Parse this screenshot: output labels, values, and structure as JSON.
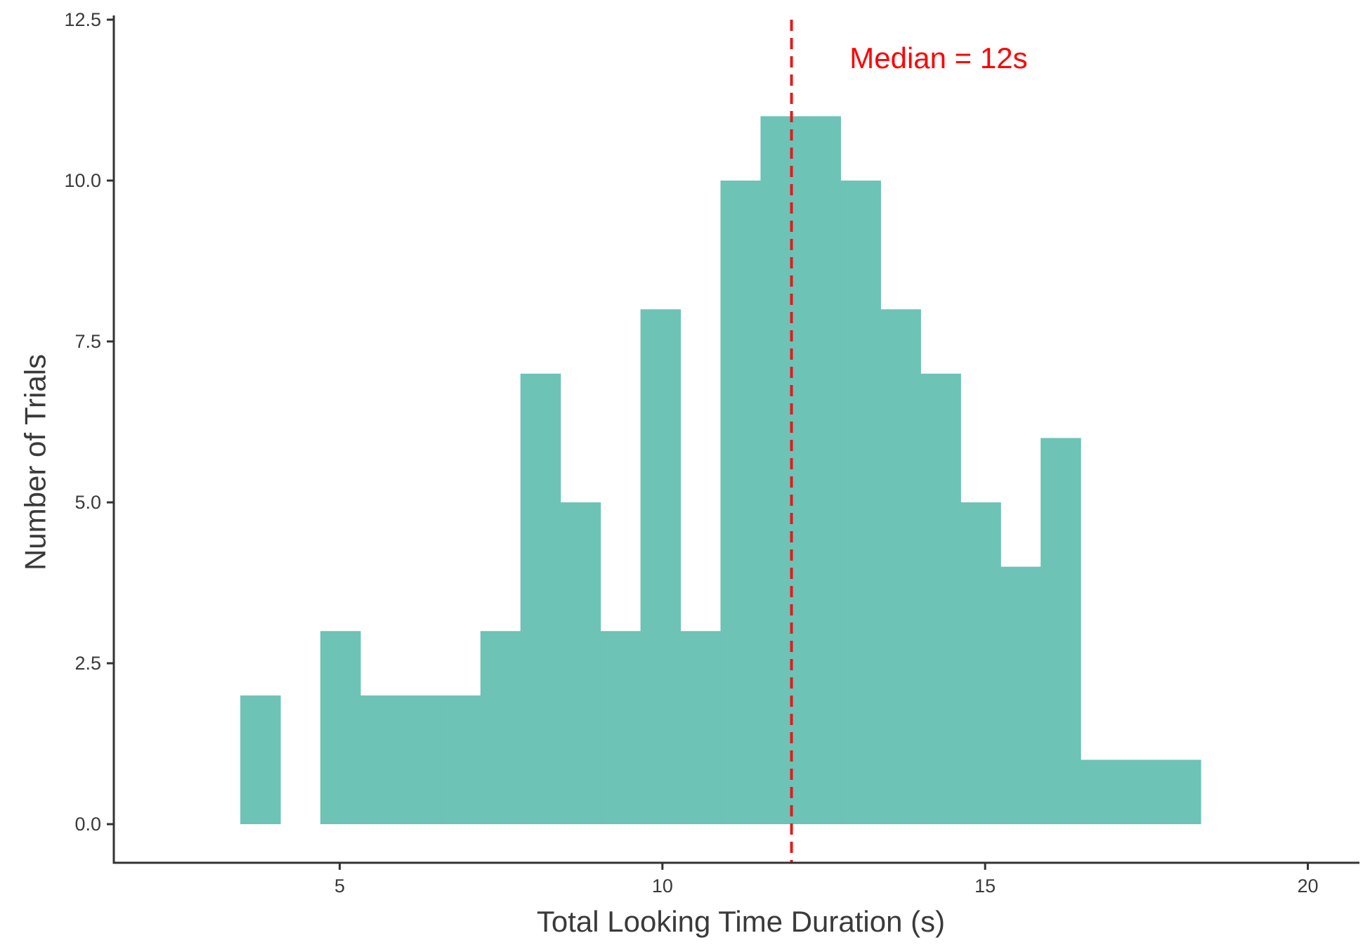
{
  "chart_data": {
    "type": "bar",
    "subtype": "histogram",
    "title": "",
    "xlabel": "Total Looking Time Duration (s)",
    "ylabel": "Number of Trials",
    "xlim": [
      1.5,
      20.8
    ],
    "ylim": [
      -0.6,
      12.5
    ],
    "x_ticks": [
      5,
      10,
      15,
      20
    ],
    "x_tick_labels": [
      "5",
      "10",
      "15",
      "20"
    ],
    "y_ticks": [
      0,
      2.5,
      5,
      7.5,
      10,
      12.5
    ],
    "y_tick_labels": [
      "0.0",
      "2.5",
      "5.0",
      "7.5",
      "10.0",
      "12.5"
    ],
    "bin_width": 0.62,
    "bins": [
      {
        "x0": 3.46,
        "x1": 4.08,
        "count": 2
      },
      {
        "x0": 4.08,
        "x1": 4.7,
        "count": 0
      },
      {
        "x0": 4.7,
        "x1": 5.32,
        "count": 3
      },
      {
        "x0": 5.32,
        "x1": 5.94,
        "count": 2
      },
      {
        "x0": 5.94,
        "x1": 6.56,
        "count": 2
      },
      {
        "x0": 6.56,
        "x1": 7.18,
        "count": 2
      },
      {
        "x0": 7.18,
        "x1": 7.8,
        "count": 3
      },
      {
        "x0": 7.8,
        "x1": 8.42,
        "count": 7
      },
      {
        "x0": 8.42,
        "x1": 9.04,
        "count": 5
      },
      {
        "x0": 9.04,
        "x1": 9.66,
        "count": 3
      },
      {
        "x0": 9.66,
        "x1": 10.28,
        "count": 8
      },
      {
        "x0": 10.28,
        "x1": 10.9,
        "count": 3
      },
      {
        "x0": 10.9,
        "x1": 11.52,
        "count": 10
      },
      {
        "x0": 11.52,
        "x1": 12.14,
        "count": 11
      },
      {
        "x0": 12.14,
        "x1": 12.76,
        "count": 11
      },
      {
        "x0": 12.76,
        "x1": 13.38,
        "count": 10
      },
      {
        "x0": 13.38,
        "x1": 14.0,
        "count": 8
      },
      {
        "x0": 14.0,
        "x1": 14.62,
        "count": 7
      },
      {
        "x0": 14.62,
        "x1": 15.24,
        "count": 5
      },
      {
        "x0": 15.24,
        "x1": 15.86,
        "count": 4
      },
      {
        "x0": 15.86,
        "x1": 16.48,
        "count": 6
      },
      {
        "x0": 16.48,
        "x1": 17.1,
        "count": 1
      },
      {
        "x0": 17.1,
        "x1": 17.72,
        "count": 1
      },
      {
        "x0": 17.72,
        "x1": 18.34,
        "count": 1
      }
    ],
    "bar_color": "#6cc3b6",
    "reference_line": {
      "x": 12,
      "style": "dashed",
      "color": "#e41a1c"
    },
    "annotation": {
      "text": "Median = 12s",
      "x": 12.9,
      "y": 11.9,
      "color": "#ff0000"
    },
    "grid": false,
    "legend": "none"
  }
}
